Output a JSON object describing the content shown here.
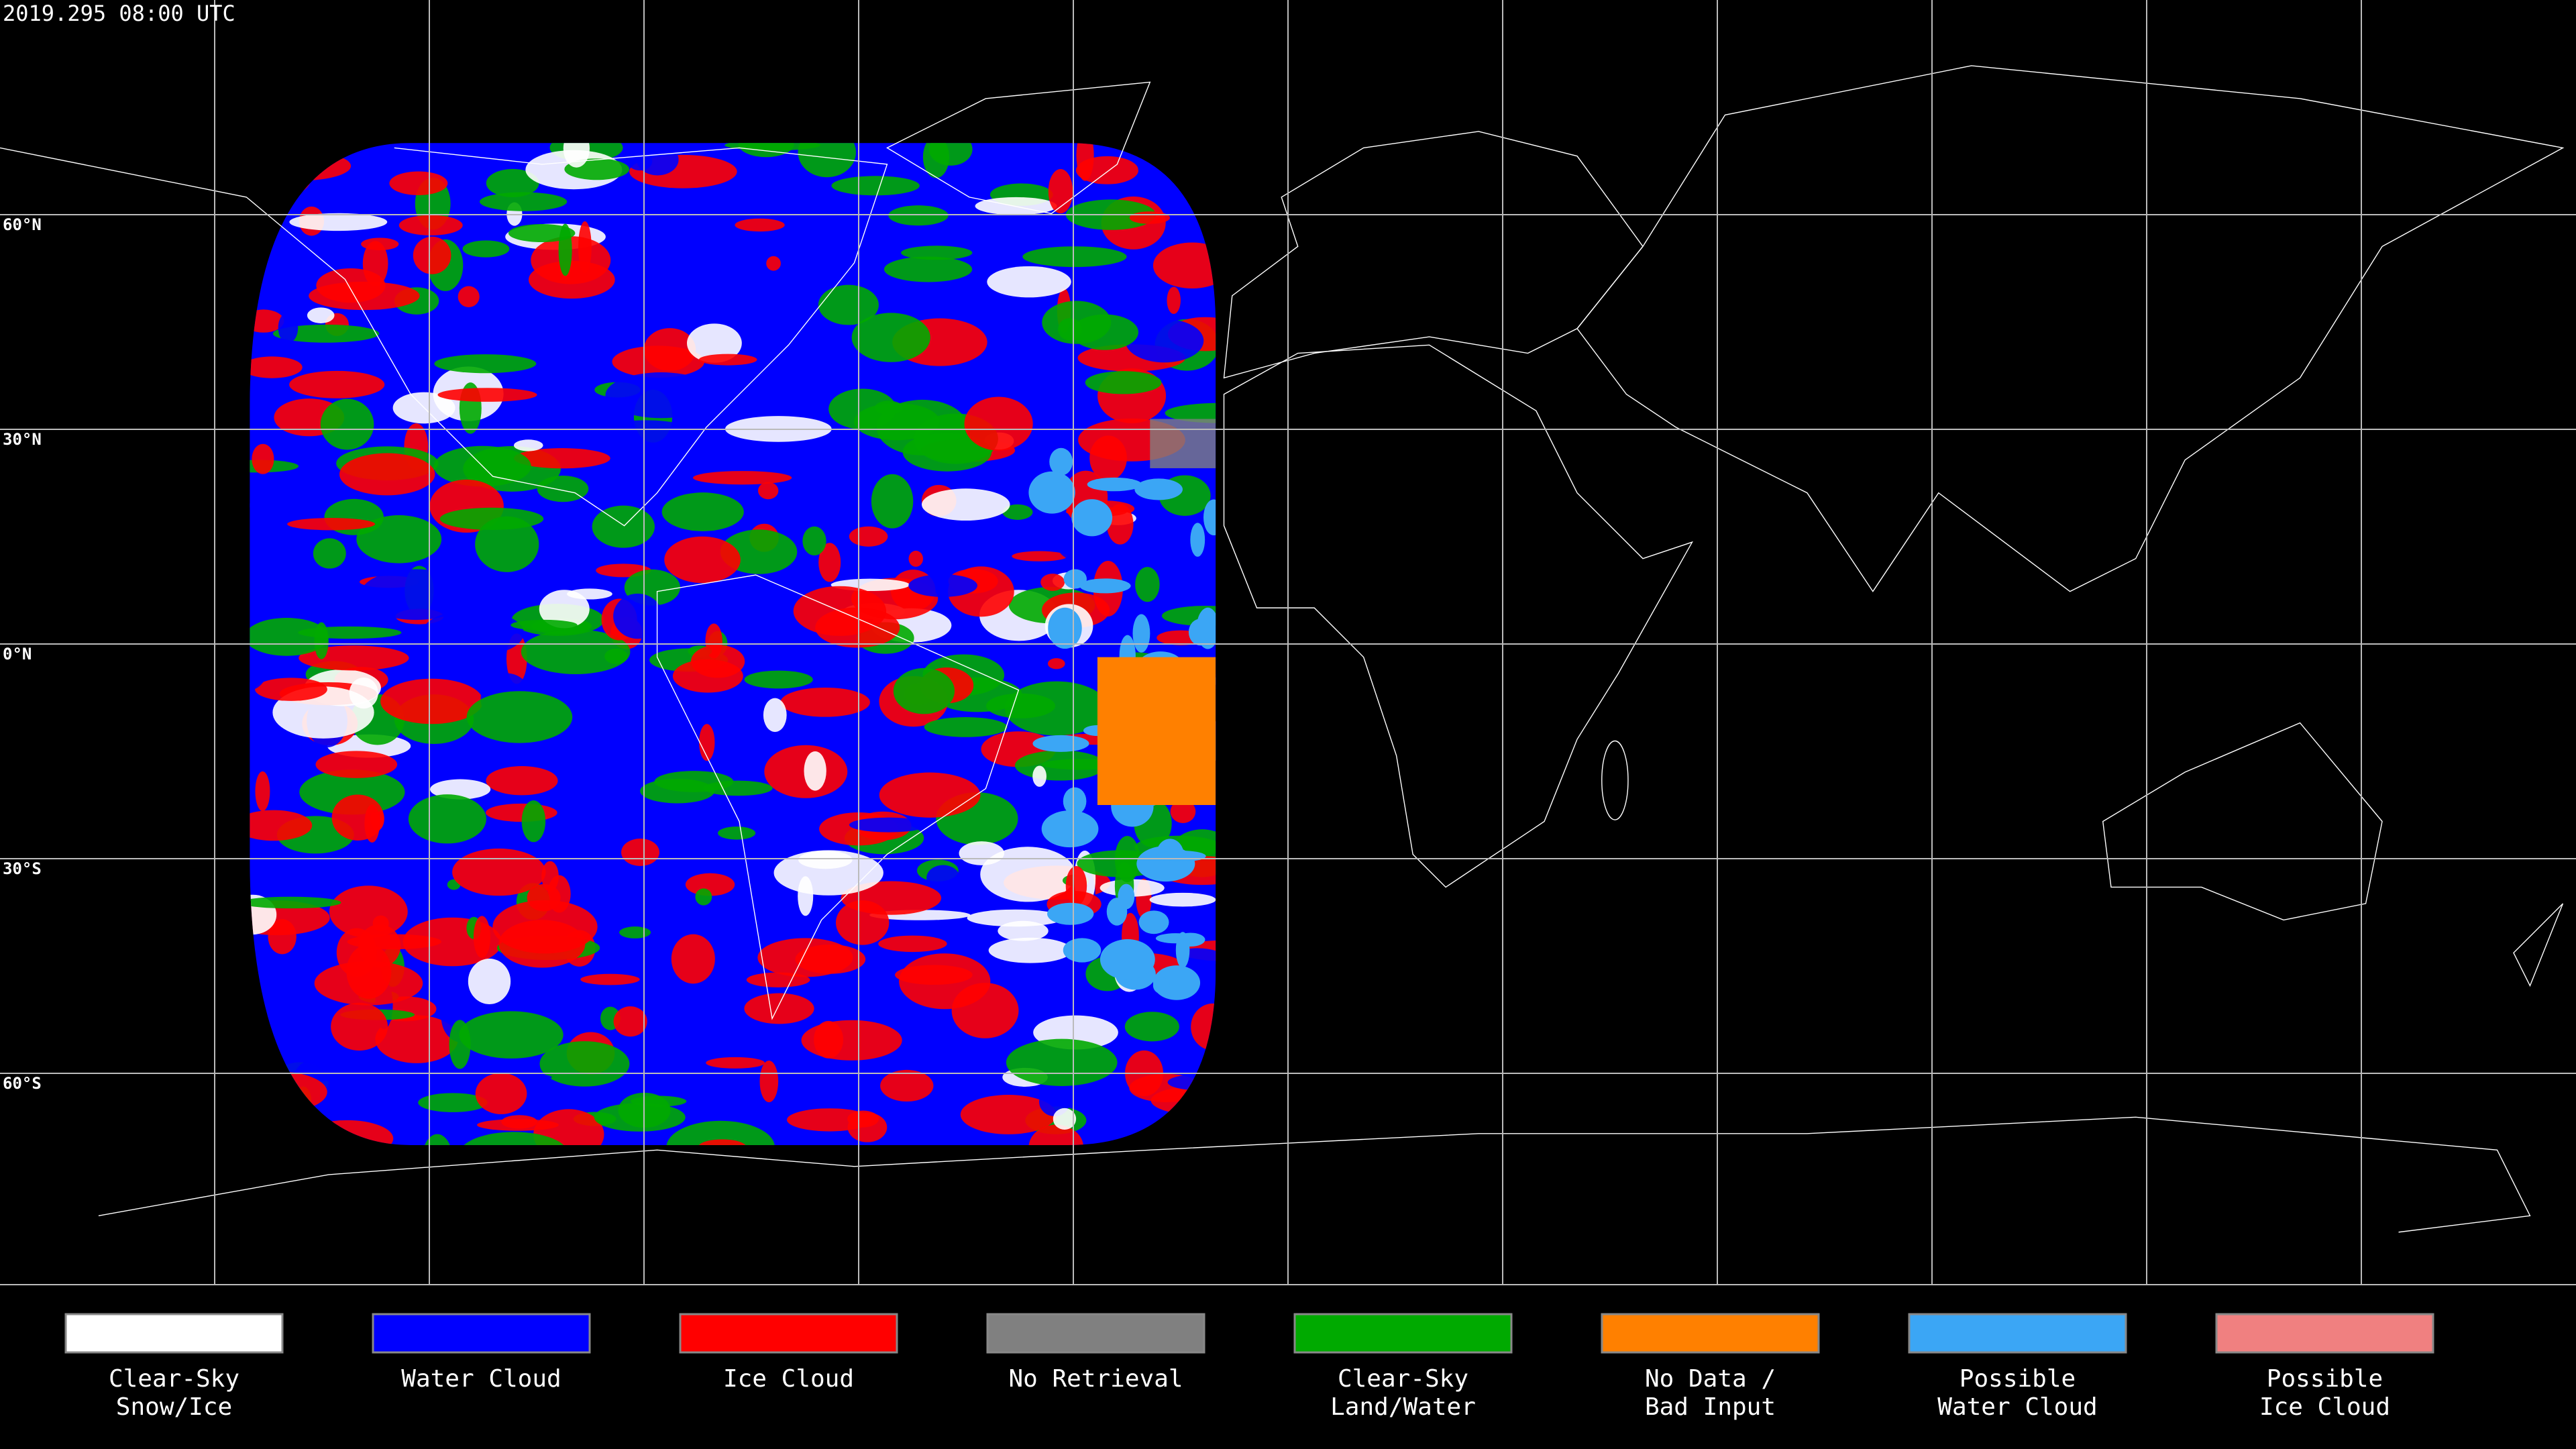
{
  "header": {
    "timestamp": "2019.295 08:00 UTC"
  },
  "map": {
    "latitude_labels": [
      "60°N",
      "30°N",
      "0°N",
      "30°S",
      "60°S"
    ]
  },
  "legend": {
    "items": [
      {
        "lines": [
          "Clear-Sky",
          "Snow/Ice"
        ],
        "color": "#ffffff"
      },
      {
        "lines": [
          "Water Cloud"
        ],
        "color": "#0000ff"
      },
      {
        "lines": [
          "Ice Cloud"
        ],
        "color": "#ff0000"
      },
      {
        "lines": [
          "No Retrieval"
        ],
        "color": "#808080"
      },
      {
        "lines": [
          "Clear-Sky",
          "Land/Water"
        ],
        "color": "#00aa00"
      },
      {
        "lines": [
          "No Data /",
          "Bad Input"
        ],
        "color": "#ff8000"
      },
      {
        "lines": [
          "Possible",
          "Water Cloud"
        ],
        "color": "#3ba6f5"
      },
      {
        "lines": [
          "Possible",
          "Ice Cloud"
        ],
        "color": "#f08080"
      }
    ]
  }
}
